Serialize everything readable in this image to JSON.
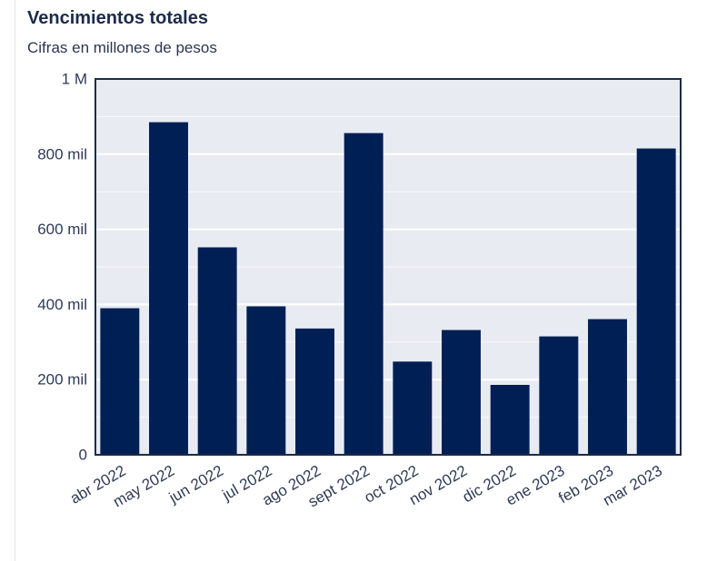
{
  "header": {
    "title": "Vencimientos totales",
    "subtitle": "Cifras en millones de pesos"
  },
  "chart_data": {
    "type": "bar",
    "categories": [
      "abr 2022",
      "may 2022",
      "jun 2022",
      "jul 2022",
      "ago 2022",
      "sept 2022",
      "oct 2022",
      "nov 2022",
      "dic 2022",
      "ene 2023",
      "feb 2023",
      "mar 2023"
    ],
    "values": [
      390000,
      885000,
      552000,
      395000,
      336000,
      856000,
      248000,
      332000,
      186000,
      315000,
      361000,
      815000
    ],
    "ylim": [
      0,
      1000000
    ],
    "yticks": [
      0,
      200000,
      400000,
      600000,
      800000,
      1000000
    ],
    "ytick_labels": [
      "0",
      "200 mil",
      "400 mil",
      "600 mil",
      "800 mil",
      "1 M"
    ],
    "grid": true,
    "legend": "none",
    "colors": {
      "bar": "#001f54",
      "plot_bg": "#e8ebf2",
      "grid": "#ffffff",
      "axis": "#1c2b4a"
    }
  }
}
